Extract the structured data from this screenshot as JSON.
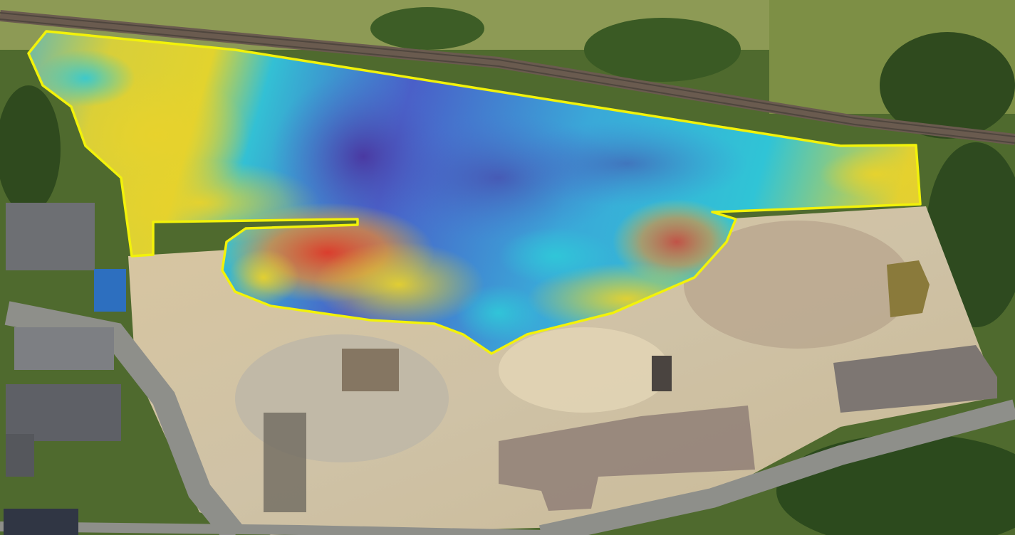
{
  "map": {
    "kind": "aerial-orthophoto",
    "overlay": {
      "kind": "elevation-heatmap",
      "outline_color": "#f2f20a",
      "color_ramp": [
        "#4c3fa8",
        "#3f6fcf",
        "#2fbfd6",
        "#e3d22a",
        "#f08a2a",
        "#e03a2a"
      ]
    },
    "colors": {
      "vegetation": "#3f5a27",
      "grass": "#7f8f46",
      "ground": "#d9c8a3",
      "road": "#8e8f8a",
      "railway": "#6a5b4f",
      "roof": "#6d6f73",
      "water_pond": "#8a7a3b"
    }
  }
}
